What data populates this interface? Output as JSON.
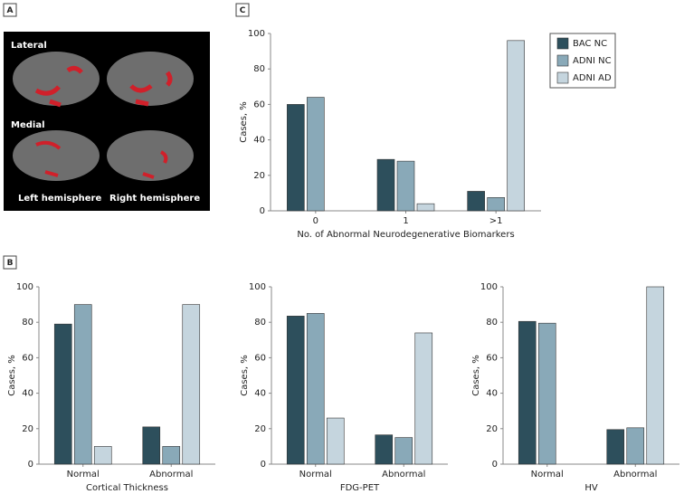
{
  "panel_labels": [
    "A",
    "B",
    "C"
  ],
  "brain_image": {
    "labels": [
      "Lateral",
      "Medial",
      "Left hemisphere",
      "Right hemisphere"
    ]
  },
  "chart_data": [
    {
      "type": "bar",
      "ylabel": "Cases, %",
      "xlabel": "No. of Abnormal Neurodegenerative Biomarkers",
      "categories": [
        "0",
        "1",
        ">1"
      ],
      "series": [
        {
          "name": "BAC NC",
          "color": "#2d4f5c",
          "values": [
            60,
            29,
            11
          ]
        },
        {
          "name": "ADNI NC",
          "color": "#89a9b8",
          "values": [
            64,
            28,
            7.5
          ]
        },
        {
          "name": "ADNI AD",
          "color": "#c5d5de",
          "values": [
            0,
            4,
            96
          ]
        }
      ],
      "ylim": [
        0,
        100
      ],
      "yticks": [
        0,
        20,
        40,
        60,
        80,
        100
      ],
      "legend": "right"
    },
    {
      "type": "bar",
      "ylabel": "Cases, %",
      "xlabel": "Cortical Thickness",
      "categories": [
        "Normal",
        "Abnormal"
      ],
      "series": [
        {
          "color": "#2d4f5c",
          "values": [
            79,
            21
          ]
        },
        {
          "color": "#89a9b8",
          "values": [
            90,
            10
          ]
        },
        {
          "color": "#c5d5de",
          "values": [
            10,
            90
          ]
        }
      ],
      "ylim": [
        0,
        100
      ],
      "yticks": [
        0,
        20,
        40,
        60,
        80,
        100
      ]
    },
    {
      "type": "bar",
      "ylabel": "Cases, %",
      "xlabel": "FDG-PET",
      "categories": [
        "Normal",
        "Abnormal"
      ],
      "series": [
        {
          "color": "#2d4f5c",
          "values": [
            83.5,
            16.5
          ]
        },
        {
          "color": "#89a9b8",
          "values": [
            85,
            15
          ]
        },
        {
          "color": "#c5d5de",
          "values": [
            26,
            74
          ]
        }
      ],
      "ylim": [
        0,
        100
      ],
      "yticks": [
        0,
        20,
        40,
        60,
        80,
        100
      ]
    },
    {
      "type": "bar",
      "ylabel": "Cases, %",
      "xlabel": "HV",
      "categories": [
        "Normal",
        "Abnormal"
      ],
      "series": [
        {
          "color": "#2d4f5c",
          "values": [
            80.5,
            19.5
          ]
        },
        {
          "color": "#89a9b8",
          "values": [
            79.5,
            20.5
          ]
        },
        {
          "color": "#c5d5de",
          "values": [
            0,
            100
          ]
        }
      ],
      "ylim": [
        0,
        100
      ],
      "yticks": [
        0,
        20,
        40,
        60,
        80,
        100
      ]
    }
  ]
}
